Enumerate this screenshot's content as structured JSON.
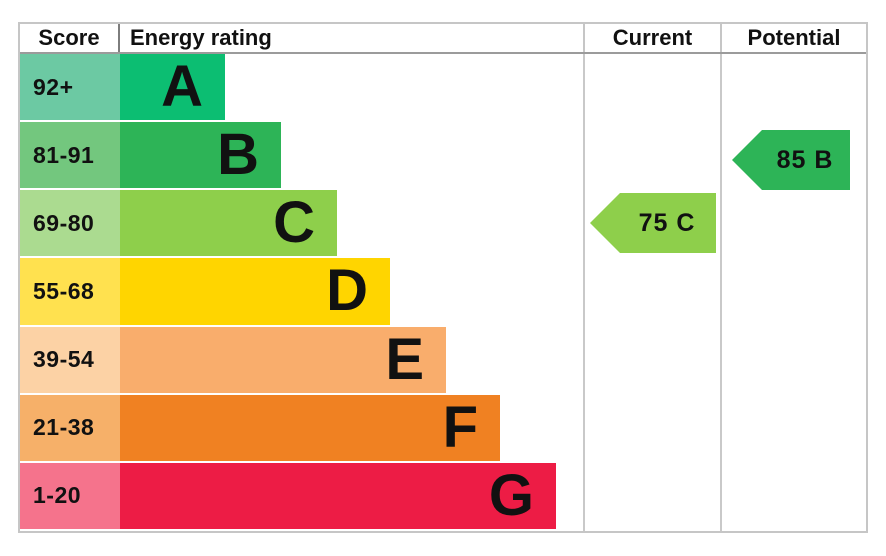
{
  "headers": {
    "score": "Score",
    "energy_rating": "Energy rating",
    "current": "Current",
    "potential": "Potential"
  },
  "bands": [
    {
      "letter": "A",
      "score_range": "92+",
      "bar_color": "#0cbe72",
      "score_bg": "#6cc9a3"
    },
    {
      "letter": "B",
      "score_range": "81-91",
      "bar_color": "#2db457",
      "score_bg": "#73c77e"
    },
    {
      "letter": "C",
      "score_range": "69-80",
      "bar_color": "#8ecf4b",
      "score_bg": "#abdb90"
    },
    {
      "letter": "D",
      "score_range": "55-68",
      "bar_color": "#ffd500",
      "score_bg": "#ffe14f"
    },
    {
      "letter": "E",
      "score_range": "39-54",
      "bar_color": "#f9ad6c",
      "score_bg": "#fcd2a5"
    },
    {
      "letter": "F",
      "score_range": "21-38",
      "bar_color": "#f08122",
      "score_bg": "#f6b069"
    },
    {
      "letter": "G",
      "score_range": "1-20",
      "bar_color": "#ed1c45",
      "score_bg": "#f5738c"
    }
  ],
  "current": {
    "label": "75 C",
    "score": 75,
    "rating": "C",
    "color": "#8ecf4b"
  },
  "potential": {
    "label": "85 B",
    "score": 85,
    "rating": "B",
    "color": "#2db457"
  },
  "chart_data": {
    "type": "bar",
    "subtype": "epc-energy-rating-chart",
    "column_headers": [
      "Score",
      "Energy rating",
      "Current",
      "Potential"
    ],
    "categories": [
      "A",
      "B",
      "C",
      "D",
      "E",
      "F",
      "G"
    ],
    "score_ranges": [
      "92+",
      "81-91",
      "69-80",
      "55-68",
      "39-54",
      "21-38",
      "1-20"
    ],
    "band_colors": [
      "#0cbe72",
      "#2db457",
      "#8ecf4b",
      "#ffd500",
      "#f9ad6c",
      "#f08122",
      "#ed1c45"
    ],
    "current": {
      "score": 75,
      "rating": "C"
    },
    "potential": {
      "score": 85,
      "rating": "B"
    },
    "legend_position": "none",
    "grid": false
  }
}
